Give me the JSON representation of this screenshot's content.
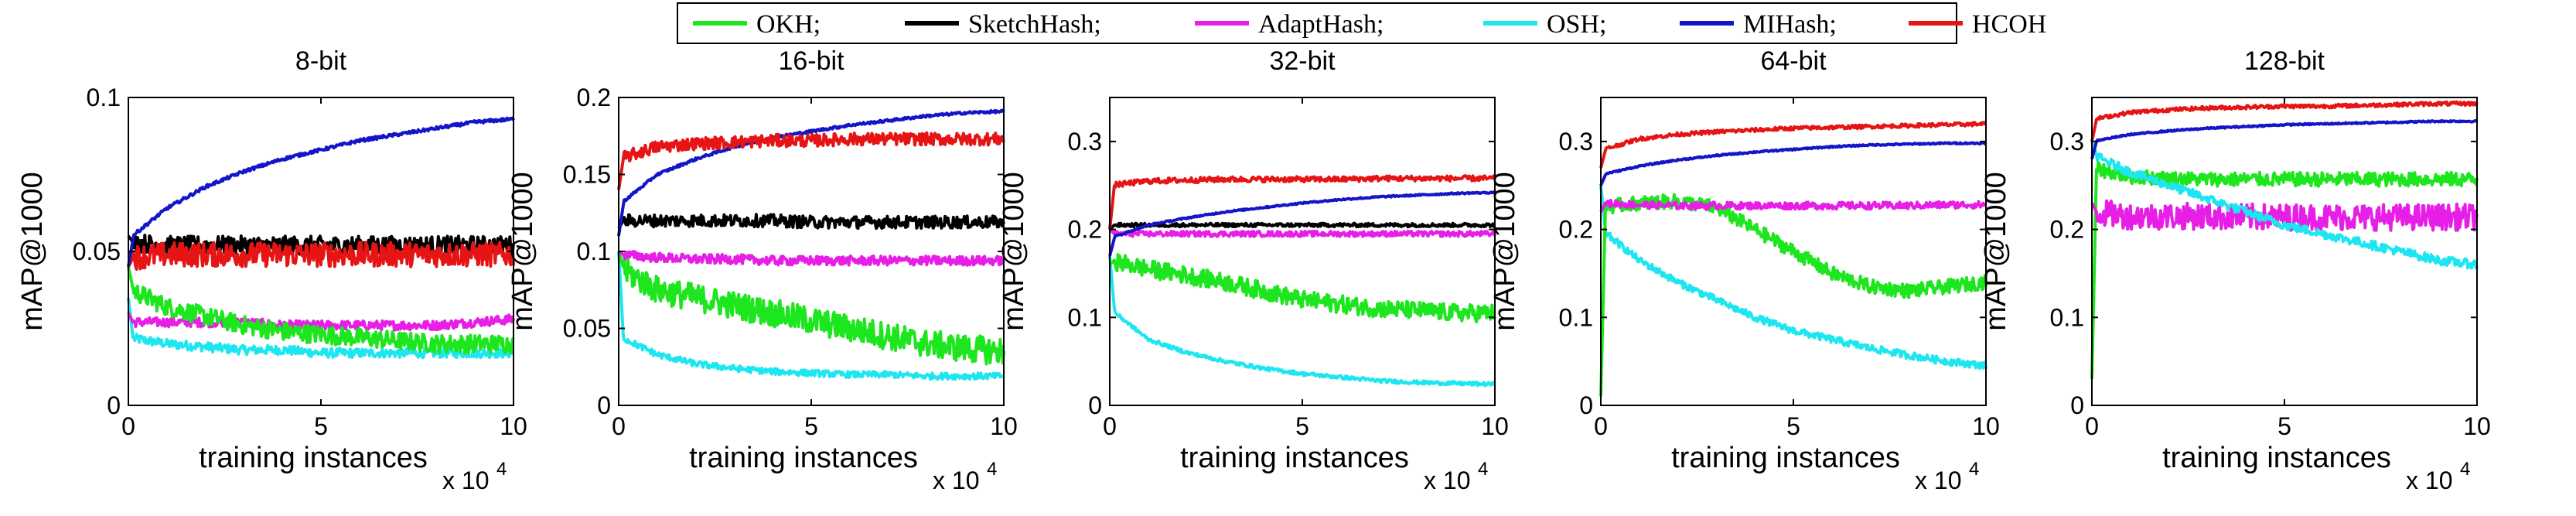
{
  "chart_data": {
    "type": "line",
    "legend": {
      "position": "top-center",
      "entries": [
        {
          "name": "OKH;",
          "color": "#1ee61e"
        },
        {
          "name": "SketchHash;",
          "color": "#000000"
        },
        {
          "name": "AdaptHash;",
          "color": "#e61ee6"
        },
        {
          "name": "OSH;",
          "color": "#1ee6f0"
        },
        {
          "name": "MIHash;",
          "color": "#1414c8"
        },
        {
          "name": "HCOH",
          "color": "#e61414"
        }
      ]
    },
    "xlabel": "training instances",
    "ylabel": "mAP@1000",
    "x_multiplier_label": "x 10",
    "x_multiplier_exp": "4",
    "x_ticks": [
      "0",
      "5",
      "10"
    ],
    "xlim": [
      0,
      10
    ],
    "panels": [
      {
        "title": "8-bit",
        "ylim": [
          0,
          0.1
        ],
        "y_ticks": [
          {
            "v": 0,
            "t": "0"
          },
          {
            "v": 0.05,
            "t": "0.05"
          },
          {
            "v": 0.1,
            "t": "0.1"
          }
        ],
        "series": [
          {
            "name": "OSH",
            "start": 0.035,
            "values": [
              0.022,
              0.02,
              0.019,
              0.018,
              0.018,
              0.017,
              0.017,
              0.017,
              0.017,
              0.017,
              0.017
            ],
            "noise": 0.0015
          },
          {
            "name": "AdaptHash",
            "start": 0.03,
            "values": [
              0.027,
              0.027,
              0.027,
              0.027,
              0.026,
              0.026,
              0.026,
              0.026,
              0.026,
              0.027,
              0.028
            ],
            "noise": 0.0015
          },
          {
            "name": "OKH",
            "start": 0.045,
            "values": [
              0.038,
              0.032,
              0.029,
              0.026,
              0.024,
              0.023,
              0.022,
              0.021,
              0.02,
              0.02,
              0.02
            ],
            "noise": 0.003
          },
          {
            "name": "SketchHash",
            "start": 0.055,
            "values": [
              0.053,
              0.052,
              0.052,
              0.052,
              0.052,
              0.052,
              0.052,
              0.052,
              0.052,
              0.052,
              0.052
            ],
            "noise": 0.003
          },
          {
            "name": "HCOH",
            "start": 0.045,
            "values": [
              0.048,
              0.049,
              0.049,
              0.049,
              0.049,
              0.049,
              0.049,
              0.049,
              0.049,
              0.049,
              0.049
            ],
            "noise": 0.004
          },
          {
            "name": "MIHash",
            "start": 0.045,
            "values": [
              0.054,
              0.064,
              0.071,
              0.076,
              0.08,
              0.083,
              0.086,
              0.088,
              0.09,
              0.092,
              0.093
            ],
            "noise": 0.0005
          }
        ]
      },
      {
        "title": "16-bit",
        "ylim": [
          0,
          0.2
        ],
        "y_ticks": [
          {
            "v": 0,
            "t": "0"
          },
          {
            "v": 0.05,
            "t": "0.05"
          },
          {
            "v": 0.1,
            "t": "0.1"
          },
          {
            "v": 0.15,
            "t": "0.15"
          },
          {
            "v": 0.2,
            "t": "0.2"
          }
        ],
        "series": [
          {
            "name": "OSH",
            "start": 0.1,
            "values": [
              0.045,
              0.033,
              0.027,
              0.024,
              0.022,
              0.021,
              0.02,
              0.02,
              0.019,
              0.019,
              0.019
            ],
            "noise": 0.002
          },
          {
            "name": "OKH",
            "start": 0.1,
            "values": [
              0.09,
              0.075,
              0.07,
              0.065,
              0.06,
              0.055,
              0.05,
              0.045,
              0.04,
              0.037,
              0.035
            ],
            "noise": 0.009
          },
          {
            "name": "AdaptHash",
            "start": 0.1,
            "values": [
              0.098,
              0.096,
              0.095,
              0.095,
              0.094,
              0.094,
              0.094,
              0.094,
              0.094,
              0.094,
              0.094
            ],
            "noise": 0.003
          },
          {
            "name": "SketchHash",
            "start": 0.115,
            "values": [
              0.12,
              0.12,
              0.12,
              0.12,
              0.12,
              0.119,
              0.119,
              0.119,
              0.119,
              0.119,
              0.119
            ],
            "noise": 0.004
          },
          {
            "name": "MIHash",
            "start": 0.11,
            "values": [
              0.13,
              0.15,
              0.16,
              0.168,
              0.174,
              0.178,
              0.182,
              0.185,
              0.188,
              0.19,
              0.191
            ],
            "noise": 0.0008
          },
          {
            "name": "HCOH",
            "start": 0.14,
            "values": [
              0.16,
              0.168,
              0.17,
              0.171,
              0.172,
              0.172,
              0.173,
              0.173,
              0.173,
              0.173,
              0.173
            ],
            "noise": 0.004
          }
        ]
      },
      {
        "title": "32-bit",
        "ylim": [
          0,
          0.35
        ],
        "y_ticks": [
          {
            "v": 0,
            "t": "0"
          },
          {
            "v": 0.1,
            "t": "0.1"
          },
          {
            "v": 0.2,
            "t": "0.2"
          },
          {
            "v": 0.3,
            "t": "0.3"
          }
        ],
        "series": [
          {
            "name": "OSH",
            "start": 0.17,
            "values": [
              0.11,
              0.075,
              0.06,
              0.05,
              0.042,
              0.036,
              0.032,
              0.028,
              0.026,
              0.025,
              0.024
            ],
            "noise": 0.002
          },
          {
            "name": "OKH",
            "start": 0.16,
            "values": [
              0.165,
              0.155,
              0.148,
              0.14,
              0.13,
              0.12,
              0.115,
              0.11,
              0.108,
              0.105,
              0.105
            ],
            "noise": 0.01
          },
          {
            "name": "AdaptHash",
            "start": 0.2,
            "values": [
              0.195,
              0.195,
              0.195,
              0.195,
              0.195,
              0.195,
              0.195,
              0.195,
              0.195,
              0.195,
              0.195
            ],
            "noise": 0.003
          },
          {
            "name": "SketchHash",
            "start": 0.2,
            "values": [
              0.205,
              0.205,
              0.205,
              0.205,
              0.205,
              0.205,
              0.205,
              0.205,
              0.205,
              0.205,
              0.205
            ],
            "noise": 0.002
          },
          {
            "name": "MIHash",
            "start": 0.17,
            "values": [
              0.19,
              0.205,
              0.213,
              0.22,
              0.225,
              0.23,
              0.234,
              0.237,
              0.239,
              0.241,
              0.242
            ],
            "noise": 0.0008
          },
          {
            "name": "HCOH",
            "start": 0.2,
            "values": [
              0.25,
              0.255,
              0.256,
              0.257,
              0.257,
              0.257,
              0.257,
              0.258,
              0.258,
              0.258,
              0.258
            ],
            "noise": 0.003
          }
        ]
      },
      {
        "title": "64-bit",
        "ylim": [
          0,
          0.35
        ],
        "y_ticks": [
          {
            "v": 0,
            "t": "0"
          },
          {
            "v": 0.1,
            "t": "0.1"
          },
          {
            "v": 0.2,
            "t": "0.2"
          },
          {
            "v": 0.3,
            "t": "0.3"
          }
        ],
        "series": [
          {
            "name": "OSH",
            "start": 0.25,
            "values": [
              0.2,
              0.165,
              0.14,
              0.12,
              0.1,
              0.085,
              0.075,
              0.065,
              0.057,
              0.05,
              0.045
            ],
            "noise": 0.004
          },
          {
            "name": "OKH",
            "start": 0.01,
            "values": [
              0.225,
              0.23,
              0.232,
              0.225,
              0.2,
              0.175,
              0.15,
              0.135,
              0.13,
              0.135,
              0.14
            ],
            "noise": 0.008
          },
          {
            "name": "AdaptHash",
            "start": 0.22,
            "values": [
              0.23,
              0.228,
              0.227,
              0.227,
              0.227,
              0.227,
              0.227,
              0.227,
              0.227,
              0.228,
              0.228
            ],
            "noise": 0.004
          },
          {
            "name": "MIHash",
            "start": 0.25,
            "values": [
              0.262,
              0.272,
              0.279,
              0.284,
              0.288,
              0.291,
              0.294,
              0.296,
              0.297,
              0.298,
              0.298
            ],
            "noise": 0.0008
          },
          {
            "name": "HCOH",
            "start": 0.27,
            "values": [
              0.29,
              0.303,
              0.308,
              0.311,
              0.313,
              0.315,
              0.316,
              0.317,
              0.318,
              0.319,
              0.32
            ],
            "noise": 0.002
          }
        ]
      },
      {
        "title": "128-bit",
        "ylim": [
          0,
          0.35
        ],
        "y_ticks": [
          {
            "v": 0,
            "t": "0"
          },
          {
            "v": 0.1,
            "t": "0.1"
          },
          {
            "v": 0.2,
            "t": "0.2"
          },
          {
            "v": 0.3,
            "t": "0.3"
          }
        ],
        "series": [
          {
            "name": "OKH",
            "start": 0.03,
            "values": [
              0.27,
              0.26,
              0.258,
              0.257,
              0.257,
              0.257,
              0.257,
              0.257,
              0.257,
              0.257,
              0.257
            ],
            "noise": 0.008
          },
          {
            "name": "AdaptHash",
            "start": 0.23,
            "values": [
              0.22,
              0.215,
              0.215,
              0.215,
              0.214,
              0.214,
              0.214,
              0.214,
              0.214,
              0.214,
              0.214
            ],
            "noise": 0.015
          },
          {
            "name": "OSH",
            "start": 0.3,
            "values": [
              0.285,
              0.265,
              0.25,
              0.235,
              0.22,
              0.205,
              0.195,
              0.185,
              0.175,
              0.165,
              0.16
            ],
            "noise": 0.005
          },
          {
            "name": "MIHash",
            "start": 0.28,
            "values": [
              0.3,
              0.308,
              0.312,
              0.315,
              0.317,
              0.319,
              0.32,
              0.321,
              0.322,
              0.323,
              0.323
            ],
            "noise": 0.0008
          },
          {
            "name": "HCOH",
            "start": 0.3,
            "values": [
              0.325,
              0.333,
              0.336,
              0.338,
              0.339,
              0.34,
              0.34,
              0.341,
              0.342,
              0.343,
              0.343
            ],
            "noise": 0.002
          }
        ]
      }
    ]
  }
}
